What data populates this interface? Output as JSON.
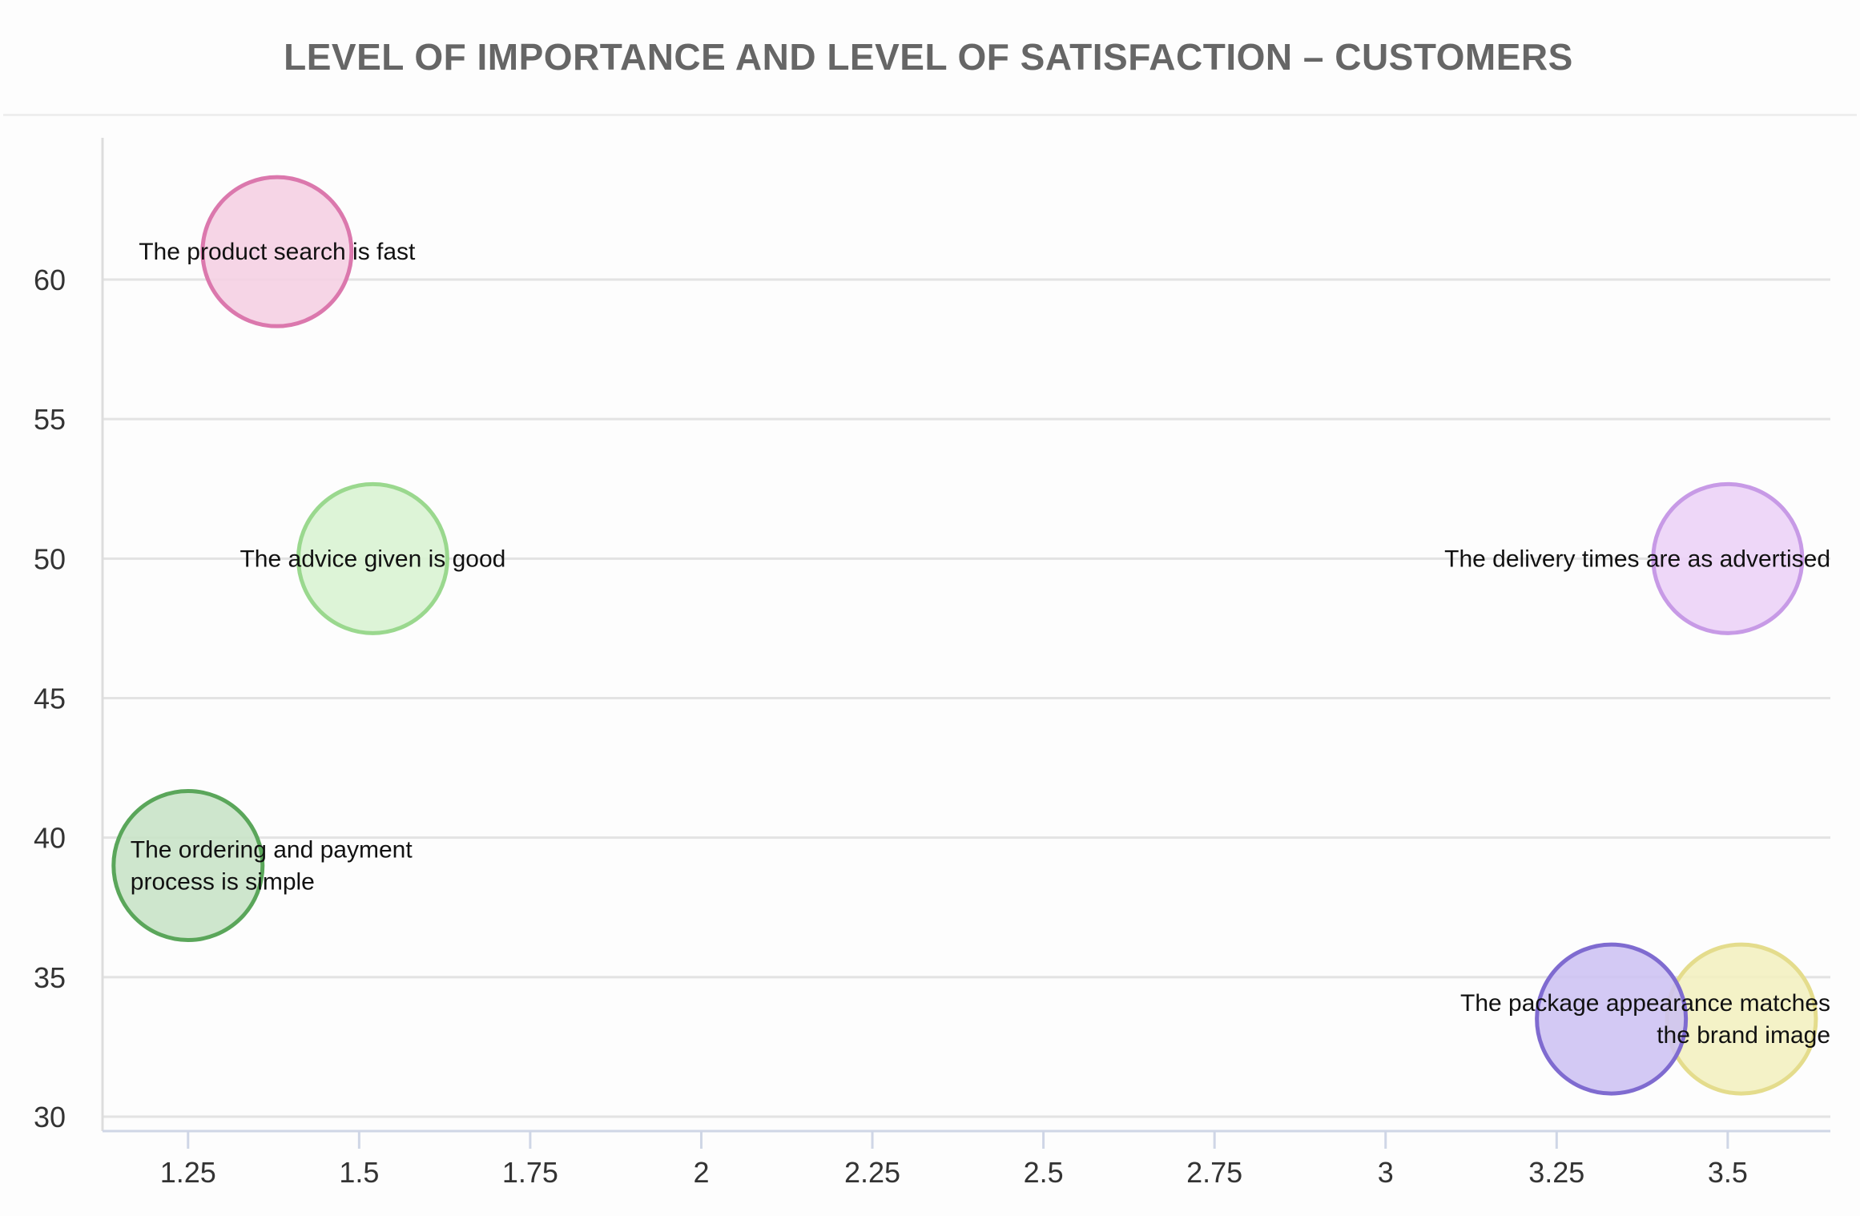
{
  "chart_data": {
    "type": "scatter",
    "title": "LEVEL OF IMPORTANCE AND LEVEL OF SATISFACTION – CUSTOMERS",
    "xlabel": "",
    "ylabel": "",
    "xlim": [
      1.125,
      3.65
    ],
    "ylim": [
      30,
      65
    ],
    "x_ticks": [
      "1.25",
      "1.5",
      "1.75",
      "2",
      "2.25",
      "2.5",
      "2.75",
      "3",
      "3.25",
      "3.5"
    ],
    "y_ticks": [
      "30",
      "35",
      "40",
      "45",
      "50",
      "55",
      "60"
    ],
    "grid": true,
    "legend": "none",
    "points": [
      {
        "label": "The product search is fast",
        "x": 1.38,
        "y": 61,
        "fill": "#f5cfe2",
        "stroke": "#db78ad"
      },
      {
        "label": "The advice given is good",
        "x": 1.52,
        "y": 50,
        "fill": "#d8f3d2",
        "stroke": "#9ad88e"
      },
      {
        "label": "The delivery times are as advertised",
        "x": 3.5,
        "y": 50,
        "fill": "#ecd2f7",
        "stroke": "#c79ae6"
      },
      {
        "label": "The ordering and payment process is simple",
        "x": 1.25,
        "y": 39,
        "fill": "#c7e2c6",
        "stroke": "#5aa65a"
      },
      {
        "label": "The package appearance matches the brand image",
        "x": 3.52,
        "y": 33.5,
        "fill": "#f3f0bf",
        "stroke": "#e4dc8c"
      },
      {
        "label": "",
        "x": 3.33,
        "y": 33.5,
        "fill": "#cdc1f2",
        "stroke": "#7f6bd0"
      }
    ],
    "labels": [
      {
        "lines": [
          "The product search is fast"
        ],
        "x": 1.38,
        "y": 61,
        "anchor": "middle"
      },
      {
        "lines": [
          "The advice given is good"
        ],
        "x": 1.52,
        "y": 50,
        "anchor": "middle"
      },
      {
        "lines": [
          "The delivery times are as advertised"
        ],
        "x": 3.5,
        "y": 50,
        "anchor": "end"
      },
      {
        "lines": [
          "The ordering and payment",
          "process is simple"
        ],
        "x": 1.25,
        "y": 39,
        "anchor": "start"
      },
      {
        "lines": [
          "The package appearance matches",
          "the brand image"
        ],
        "x": 3.52,
        "y": 33.5,
        "anchor": "end"
      }
    ]
  }
}
